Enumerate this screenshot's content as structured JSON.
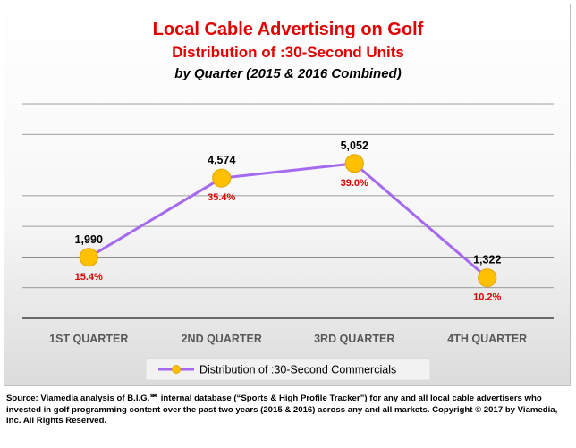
{
  "chart_data": {
    "type": "line",
    "title": "Local Cable Advertising on Golf",
    "subtitle": "Distribution of :30-Second Units",
    "subtitle2": "by Quarter (2015 & 2016 Combined)",
    "categories": [
      "1ST QUARTER",
      "2ND QUARTER",
      "3RD QUARTER",
      "4TH QUARTER"
    ],
    "series": [
      {
        "name": "Distribution of :30-Second Commercials",
        "values": [
          1990,
          4574,
          5052,
          1322
        ],
        "value_labels": [
          "1,990",
          "4,574",
          "5,052",
          "1,322"
        ],
        "percent_labels": [
          "15.4%",
          "35.4%",
          "39.0%",
          "10.2%"
        ]
      }
    ],
    "ylim": [
      0,
      7000
    ],
    "grid": true,
    "legend_position": "bottom",
    "colors": {
      "title": "#e00000",
      "line": "#a569f0",
      "marker_fill": "#ffc000",
      "marker_stroke": "#e6a800",
      "percent_label": "#e00000",
      "gridline": "#7f7f7f",
      "axis_label": "#595959"
    }
  },
  "source_note": "Source: Viamedia analysis of B.I.G.℠ internal database (“Sports & High Profile Tracker”) for any and all local cable advertisers who invested in golf programming content over the past two years (2015 & 2016) across any and all markets. Copyright © 2017 by Viamedia, Inc. All Rights Reserved."
}
